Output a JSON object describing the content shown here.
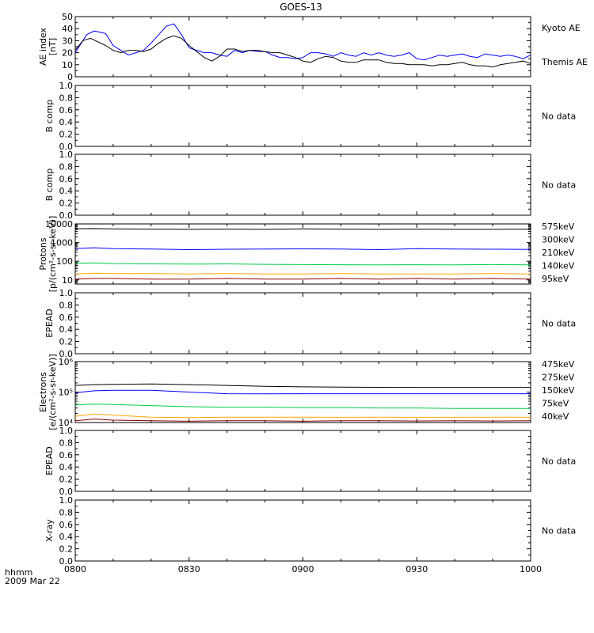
{
  "title": "GOES-13",
  "footer": {
    "time_label": "hhmm",
    "date_label": "2009 Mar 22"
  },
  "x_axis": {
    "ticks": [
      "0800",
      "0830",
      "0900",
      "0930",
      "1000"
    ],
    "range_minutes": [
      0,
      120
    ]
  },
  "colors": {
    "black": "#000000",
    "blue": "#0000ff",
    "green": "#00cc44",
    "orange": "#ffa500",
    "darkred": "#8b0000"
  },
  "chart_data": [
    {
      "id": "ae",
      "type": "line",
      "ylabel": [
        "AE index",
        "[nT]"
      ],
      "ylim": [
        0,
        50
      ],
      "scale": "linear",
      "yticks": [
        "0",
        "10",
        "20",
        "30",
        "40",
        "50"
      ],
      "series": [
        {
          "name": "Kyoto AE",
          "color": "#0000ff",
          "x": [
            0,
            3,
            5,
            8,
            10,
            12,
            14,
            16,
            18,
            20,
            22,
            24,
            26,
            28,
            30,
            32,
            34,
            36,
            38,
            40,
            42,
            44,
            46,
            48,
            50,
            52,
            54,
            56,
            58,
            60,
            62,
            64,
            66,
            68,
            70,
            72,
            74,
            76,
            78,
            80,
            82,
            84,
            86,
            88,
            90,
            92,
            94,
            96,
            98,
            100,
            102,
            104,
            106,
            108,
            110,
            112,
            114,
            116,
            118,
            120
          ],
          "y": [
            20,
            35,
            38,
            36,
            26,
            22,
            18,
            20,
            22,
            28,
            35,
            42,
            44,
            35,
            24,
            22,
            20,
            20,
            18,
            17,
            22,
            20,
            22,
            21,
            21,
            18,
            16,
            16,
            15,
            16,
            20,
            20,
            19,
            17,
            20,
            18,
            17,
            20,
            18,
            20,
            18,
            17,
            18,
            20,
            15,
            14,
            16,
            18,
            17,
            18,
            19,
            17,
            16,
            19,
            18,
            17,
            18,
            17,
            15,
            18
          ]
        },
        {
          "name": "Themis AE",
          "color": "#000000",
          "x": [
            0,
            2,
            4,
            6,
            8,
            10,
            12,
            14,
            16,
            18,
            20,
            22,
            24,
            26,
            28,
            30,
            32,
            34,
            36,
            38,
            40,
            42,
            44,
            46,
            48,
            50,
            52,
            54,
            56,
            58,
            60,
            62,
            64,
            66,
            68,
            70,
            72,
            74,
            76,
            78,
            80,
            82,
            84,
            86,
            88,
            90,
            92,
            94,
            96,
            98,
            100,
            102,
            104,
            106,
            108,
            110,
            112,
            114,
            116,
            118,
            120
          ],
          "y": [
            22,
            30,
            32,
            29,
            26,
            22,
            20,
            22,
            22,
            21,
            23,
            28,
            32,
            34,
            32,
            26,
            21,
            16,
            13,
            17,
            23,
            23,
            21,
            22,
            22,
            21,
            20,
            20,
            18,
            16,
            13,
            12,
            15,
            17,
            16,
            13,
            12,
            12,
            14,
            14,
            14,
            12,
            11,
            11,
            10,
            10,
            10,
            9,
            10,
            10,
            11,
            12,
            10,
            9,
            9,
            8,
            10,
            11,
            12,
            13,
            11
          ]
        }
      ]
    },
    {
      "id": "b1",
      "type": "line",
      "ylabel": [
        "B comp"
      ],
      "ylim": [
        0,
        1
      ],
      "scale": "linear",
      "yticks": [
        "0.0",
        "0.2",
        "0.4",
        "0.6",
        "0.8",
        "1.0"
      ],
      "note": "No data",
      "series": []
    },
    {
      "id": "b2",
      "type": "line",
      "ylabel": [
        "B comp"
      ],
      "ylim": [
        0,
        1
      ],
      "scale": "linear",
      "yticks": [
        "0.0",
        "0.2",
        "0.4",
        "0.6",
        "0.8",
        "1.0"
      ],
      "note": "No data",
      "series": []
    },
    {
      "id": "protons",
      "type": "line",
      "ylabel": [
        "Protons",
        "[p/(cm²-s-sr-keV)]"
      ],
      "ylim": [
        6,
        10000
      ],
      "scale": "log",
      "yticks": [
        "10",
        "100",
        "1000",
        "10000"
      ],
      "ytick_values": [
        10,
        100,
        1000,
        10000
      ],
      "series": [
        {
          "name": "575keV",
          "color": "#8b0000",
          "x": [
            0,
            5,
            10,
            20,
            30,
            40,
            50,
            60,
            70,
            80,
            90,
            100,
            110,
            120
          ],
          "y": [
            11,
            12,
            12,
            11,
            11,
            12,
            11,
            11,
            12,
            11,
            12,
            11,
            12,
            11
          ]
        },
        {
          "name": "300keV",
          "color": "#ffa500",
          "x": [
            0,
            5,
            10,
            20,
            30,
            40,
            50,
            60,
            70,
            80,
            90,
            100,
            110,
            120
          ],
          "y": [
            21,
            23,
            22,
            22,
            21,
            22,
            21,
            21,
            22,
            21,
            21,
            21,
            22,
            21
          ]
        },
        {
          "name": "210keV",
          "color": "#00cc44",
          "x": [
            0,
            5,
            10,
            20,
            30,
            40,
            50,
            60,
            70,
            80,
            90,
            100,
            110,
            120
          ],
          "y": [
            78,
            82,
            75,
            72,
            70,
            72,
            68,
            66,
            65,
            64,
            65,
            64,
            66,
            64
          ]
        },
        {
          "name": "140keV",
          "color": "#0000ff",
          "x": [
            0,
            5,
            10,
            20,
            30,
            40,
            50,
            60,
            70,
            80,
            90,
            100,
            110,
            120
          ],
          "y": [
            480,
            530,
            470,
            450,
            420,
            440,
            450,
            460,
            450,
            420,
            470,
            450,
            440,
            430
          ]
        },
        {
          "name": "95keV",
          "color": "#000000",
          "x": [
            0,
            5,
            10,
            20,
            30,
            40,
            50,
            60,
            70,
            80,
            90,
            100,
            110,
            120
          ],
          "y": [
            5500,
            5600,
            5400,
            5300,
            5200,
            5300,
            5200,
            5400,
            5300,
            5200,
            5300,
            5200,
            5200,
            5300
          ]
        }
      ]
    },
    {
      "id": "epead1",
      "type": "line",
      "ylabel": [
        "EPEAD"
      ],
      "ylim": [
        0,
        1
      ],
      "scale": "linear",
      "yticks": [
        "0.0",
        "0.2",
        "0.4",
        "0.6",
        "0.8",
        "1.0"
      ],
      "note": "No data",
      "series": []
    },
    {
      "id": "electrons",
      "type": "line",
      "ylabel": [
        "Electrons",
        "[e/(cm²-s-sr-keV)]"
      ],
      "ylim": [
        10000,
        1000000
      ],
      "scale": "log",
      "yticks": [
        "10⁴",
        "10⁵",
        "10⁶"
      ],
      "ytick_values": [
        10000,
        100000,
        1000000
      ],
      "series": [
        {
          "name": "475keV",
          "color": "#8b0000",
          "x": [
            0,
            5,
            10,
            20,
            30,
            40,
            50,
            60,
            70,
            80,
            90,
            100,
            110,
            120
          ],
          "y": [
            11500,
            13000,
            12000,
            11500,
            11000,
            11500,
            11500,
            11000,
            11500,
            11500,
            11200,
            11500,
            11200,
            11400
          ]
        },
        {
          "name": "275keV",
          "color": "#ffa500",
          "x": [
            0,
            5,
            10,
            20,
            30,
            40,
            50,
            60,
            70,
            80,
            90,
            100,
            110,
            120
          ],
          "y": [
            16000,
            19000,
            17500,
            15000,
            14500,
            15000,
            15000,
            15000,
            14800,
            15000,
            14800,
            14800,
            15000,
            14800
          ]
        },
        {
          "name": "150keV",
          "color": "#00cc44",
          "x": [
            0,
            5,
            10,
            20,
            30,
            40,
            50,
            60,
            70,
            80,
            90,
            100,
            110,
            120
          ],
          "y": [
            38000,
            40000,
            39000,
            36000,
            33000,
            32000,
            32000,
            31000,
            31000,
            30000,
            30000,
            29000,
            29000,
            29000
          ]
        },
        {
          "name": "75keV",
          "color": "#0000ff",
          "x": [
            0,
            5,
            10,
            20,
            30,
            40,
            50,
            60,
            70,
            80,
            90,
            100,
            110,
            120
          ],
          "y": [
            95000,
            110000,
            115000,
            115000,
            100000,
            88000,
            87000,
            88000,
            88000,
            88000,
            88000,
            88000,
            88000,
            88000
          ]
        },
        {
          "name": "40keV",
          "color": "#000000",
          "x": [
            0,
            5,
            10,
            20,
            30,
            40,
            50,
            60,
            70,
            80,
            90,
            100,
            110,
            120
          ],
          "y": [
            165000,
            175000,
            180000,
            185000,
            175000,
            165000,
            155000,
            148000,
            145000,
            143000,
            142000,
            142000,
            142000,
            142000
          ]
        }
      ]
    },
    {
      "id": "epead2",
      "type": "line",
      "ylabel": [
        "EPEAD"
      ],
      "ylim": [
        0,
        1
      ],
      "scale": "linear",
      "yticks": [
        "0.0",
        "0.2",
        "0.4",
        "0.6",
        "0.8",
        "1.0"
      ],
      "note": "No data",
      "series": []
    },
    {
      "id": "xray",
      "type": "line",
      "ylabel": [
        "X-ray"
      ],
      "ylim": [
        0,
        1
      ],
      "scale": "linear",
      "yticks": [
        "0.0",
        "0.2",
        "0.4",
        "0.6",
        "0.8",
        "1.0"
      ],
      "note": "No data",
      "series": []
    }
  ]
}
